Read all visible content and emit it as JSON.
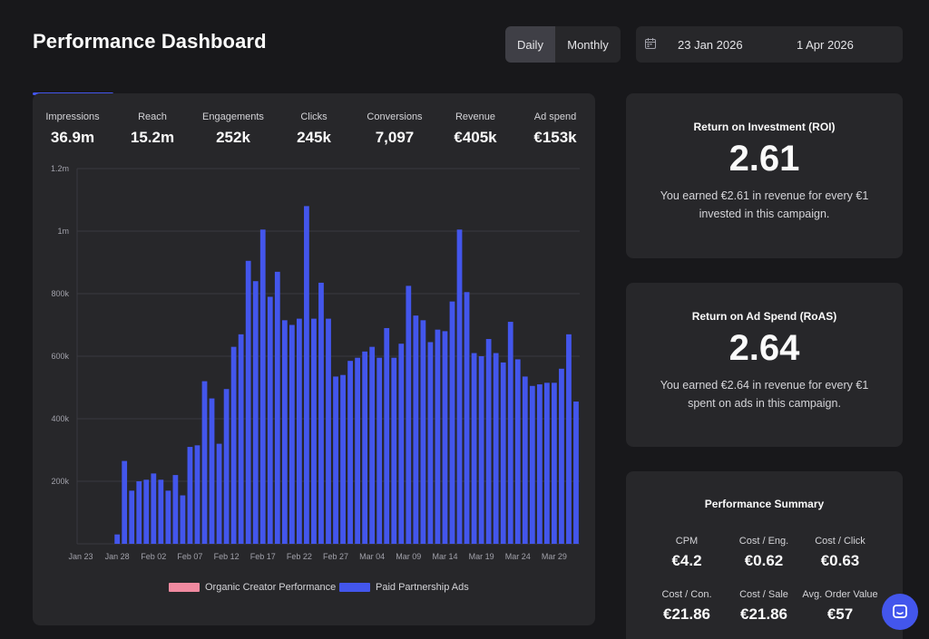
{
  "header": {
    "title": "Performance Dashboard"
  },
  "toggle": {
    "daily_label": "Daily",
    "monthly_label": "Monthly",
    "selected": "Daily"
  },
  "date_range": {
    "icon": "calendar-icon",
    "start": "23 Jan 2026",
    "end": "1 Apr 2026"
  },
  "metrics": [
    {
      "label": "Impressions",
      "value": "36.9m"
    },
    {
      "label": "Reach",
      "value": "15.2m"
    },
    {
      "label": "Engagements",
      "value": "252k"
    },
    {
      "label": "Clicks",
      "value": "245k"
    },
    {
      "label": "Conversions",
      "value": "7,097"
    },
    {
      "label": "Revenue",
      "value": "€405k"
    },
    {
      "label": "Ad spend",
      "value": "€153k"
    }
  ],
  "colors": {
    "paid": "#4356ec",
    "organic": "#f08aa0",
    "accent": "#4356ec"
  },
  "chart_data": {
    "type": "bar",
    "ylim": [
      0,
      1200000
    ],
    "yticks": [
      {
        "value": 200000,
        "label": "200k"
      },
      {
        "value": 400000,
        "label": "400k"
      },
      {
        "value": 600000,
        "label": "600k"
      },
      {
        "value": 800000,
        "label": "800k"
      },
      {
        "value": 1000000,
        "label": "1m"
      },
      {
        "value": 1200000,
        "label": "1.2m"
      }
    ],
    "xticks": [
      "Jan 23",
      "Jan 28",
      "Feb 02",
      "Feb 07",
      "Feb 12",
      "Feb 17",
      "Feb 22",
      "Feb 27",
      "Mar 04",
      "Mar 09",
      "Mar 14",
      "Mar 19",
      "Mar 24",
      "Mar 29"
    ],
    "x_start": "2026-01-23",
    "grid": true,
    "legend_position": "bottom",
    "series": [
      {
        "name": "Organic Creator Performance",
        "color": "#f08aa0",
        "values": [
          0,
          0,
          0,
          0,
          0,
          0,
          0,
          0,
          0,
          0,
          0,
          0,
          0,
          0,
          0,
          0,
          0,
          0,
          0,
          0,
          0,
          0,
          0,
          0,
          0,
          0,
          0,
          0,
          0,
          0,
          0,
          0,
          0,
          0,
          0,
          0,
          0,
          0,
          0,
          0,
          0,
          0,
          0,
          0,
          0,
          0,
          0,
          0,
          0,
          0,
          0,
          0,
          0,
          0,
          0,
          0,
          0,
          0,
          0,
          0,
          0,
          0,
          0,
          0,
          0,
          0,
          0,
          0,
          0,
          0
        ]
      },
      {
        "name": "Paid Partnership Ads",
        "color": "#4356ec",
        "values": [
          0,
          0,
          0,
          0,
          0,
          30000,
          265000,
          170000,
          200000,
          205000,
          225000,
          205000,
          170000,
          220000,
          155000,
          310000,
          315000,
          520000,
          465000,
          320000,
          495000,
          630000,
          670000,
          905000,
          840000,
          1005000,
          790000,
          870000,
          715000,
          700000,
          720000,
          1080000,
          720000,
          835000,
          720000,
          535000,
          540000,
          585000,
          595000,
          615000,
          630000,
          595000,
          690000,
          595000,
          640000,
          825000,
          730000,
          715000,
          645000,
          685000,
          680000,
          775000,
          1005000,
          805000,
          610000,
          600000,
          655000,
          610000,
          580000,
          710000,
          590000,
          535000,
          505000,
          510000,
          515000,
          515000,
          560000,
          670000,
          455000
        ]
      }
    ]
  },
  "roi": {
    "title": "Return on Investment (ROI)",
    "value": "2.61",
    "desc": "You earned €2.61 in revenue for every €1 invested in this campaign."
  },
  "roas": {
    "title": "Return on Ad Spend (RoAS)",
    "value": "2.64",
    "desc": "You earned €2.64 in revenue for every €1 spent on ads in this campaign."
  },
  "summary": {
    "title": "Performance Summary",
    "items": [
      {
        "label": "CPM",
        "value": "€4.2"
      },
      {
        "label": "Cost / Eng.",
        "value": "€0.62"
      },
      {
        "label": "Cost / Click",
        "value": "€0.63"
      },
      {
        "label": "Cost / Con.",
        "value": "€21.86"
      },
      {
        "label": "Cost / Sale",
        "value": "€21.86"
      },
      {
        "label": "Avg. Order Value",
        "value": "€57"
      }
    ]
  },
  "chat": {
    "icon": "chat-bubble-icon"
  }
}
